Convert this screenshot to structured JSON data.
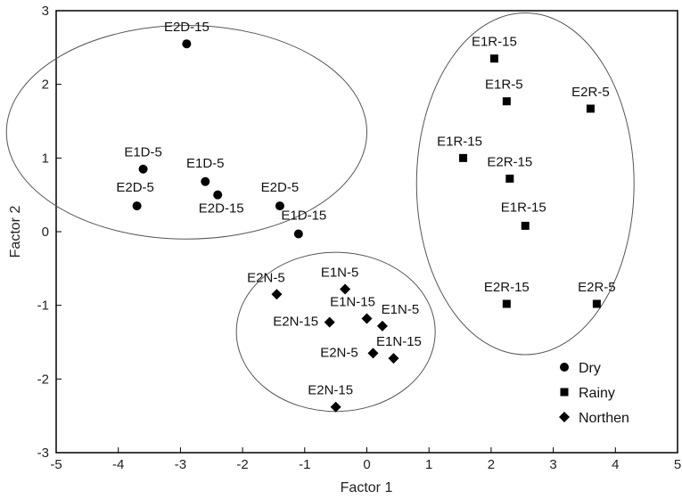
{
  "chart_data": {
    "type": "scatter",
    "xlabel": "Factor 1",
    "ylabel": "Factor 2",
    "xlim": [
      -5,
      5
    ],
    "ylim": [
      -3,
      3
    ],
    "xticks": [
      "-5",
      "-4",
      "-3",
      "-2",
      "-1",
      "0",
      "1",
      "2",
      "3",
      "4",
      "5"
    ],
    "yticks": [
      "3",
      "2",
      "1",
      "0",
      "-1",
      "-2",
      "-3"
    ],
    "grid": false,
    "legend_position": "bottom-right",
    "series": [
      {
        "name": "Dry",
        "marker": "circle",
        "points": [
          {
            "label": "E2D-15",
            "x": -2.9,
            "y": 2.55
          },
          {
            "label": "E1D-5",
            "x": -3.6,
            "y": 0.85
          },
          {
            "label": "E1D-5",
            "x": -2.6,
            "y": 0.68
          },
          {
            "label": "E2D-15",
            "x": -2.4,
            "y": 0.5
          },
          {
            "label": "E2D-5",
            "x": -3.7,
            "y": 0.35
          },
          {
            "label": "E2D-5",
            "x": -1.4,
            "y": 0.35
          },
          {
            "label": "E1D-15",
            "x": -1.1,
            "y": -0.03
          }
        ]
      },
      {
        "name": "Rainy",
        "marker": "square",
        "points": [
          {
            "label": "E1R-15",
            "x": 2.05,
            "y": 2.35
          },
          {
            "label": "E1R-5",
            "x": 2.25,
            "y": 1.77
          },
          {
            "label": "E2R-5",
            "x": 3.6,
            "y": 1.67
          },
          {
            "label": "E1R-15",
            "x": 1.55,
            "y": 1.0
          },
          {
            "label": "E2R-15",
            "x": 2.3,
            "y": 0.72
          },
          {
            "label": "E1R-15",
            "x": 2.55,
            "y": 0.08
          },
          {
            "label": "E2R-15",
            "x": 2.25,
            "y": -0.98
          },
          {
            "label": "E2R-5",
            "x": 3.7,
            "y": -0.98
          }
        ]
      },
      {
        "name": "Northen",
        "marker": "diamond",
        "points": [
          {
            "label": "E2N-5",
            "x": -1.45,
            "y": -0.85
          },
          {
            "label": "E1N-5",
            "x": -0.35,
            "y": -0.78
          },
          {
            "label": "E2N-15",
            "x": -0.6,
            "y": -1.23
          },
          {
            "label": "E1N-15",
            "x": 0.0,
            "y": -1.18
          },
          {
            "label": "E1N-5",
            "x": 0.25,
            "y": -1.28
          },
          {
            "label": "E2N-5",
            "x": 0.1,
            "y": -1.65
          },
          {
            "label": "E1N-15",
            "x": 0.43,
            "y": -1.72
          },
          {
            "label": "E2N-15",
            "x": -0.5,
            "y": -2.38
          }
        ]
      }
    ],
    "ellipses": [
      {
        "group": "Dry",
        "cx": -2.9,
        "cy": 1.35,
        "rx": 2.9,
        "ry": 1.45
      },
      {
        "group": "Northen",
        "cx": -0.5,
        "cy": -1.36,
        "rx": 1.6,
        "ry": 1.08
      },
      {
        "group": "Rainy",
        "cx": 2.55,
        "cy": 0.65,
        "rx": 1.75,
        "ry": 2.32
      }
    ]
  }
}
